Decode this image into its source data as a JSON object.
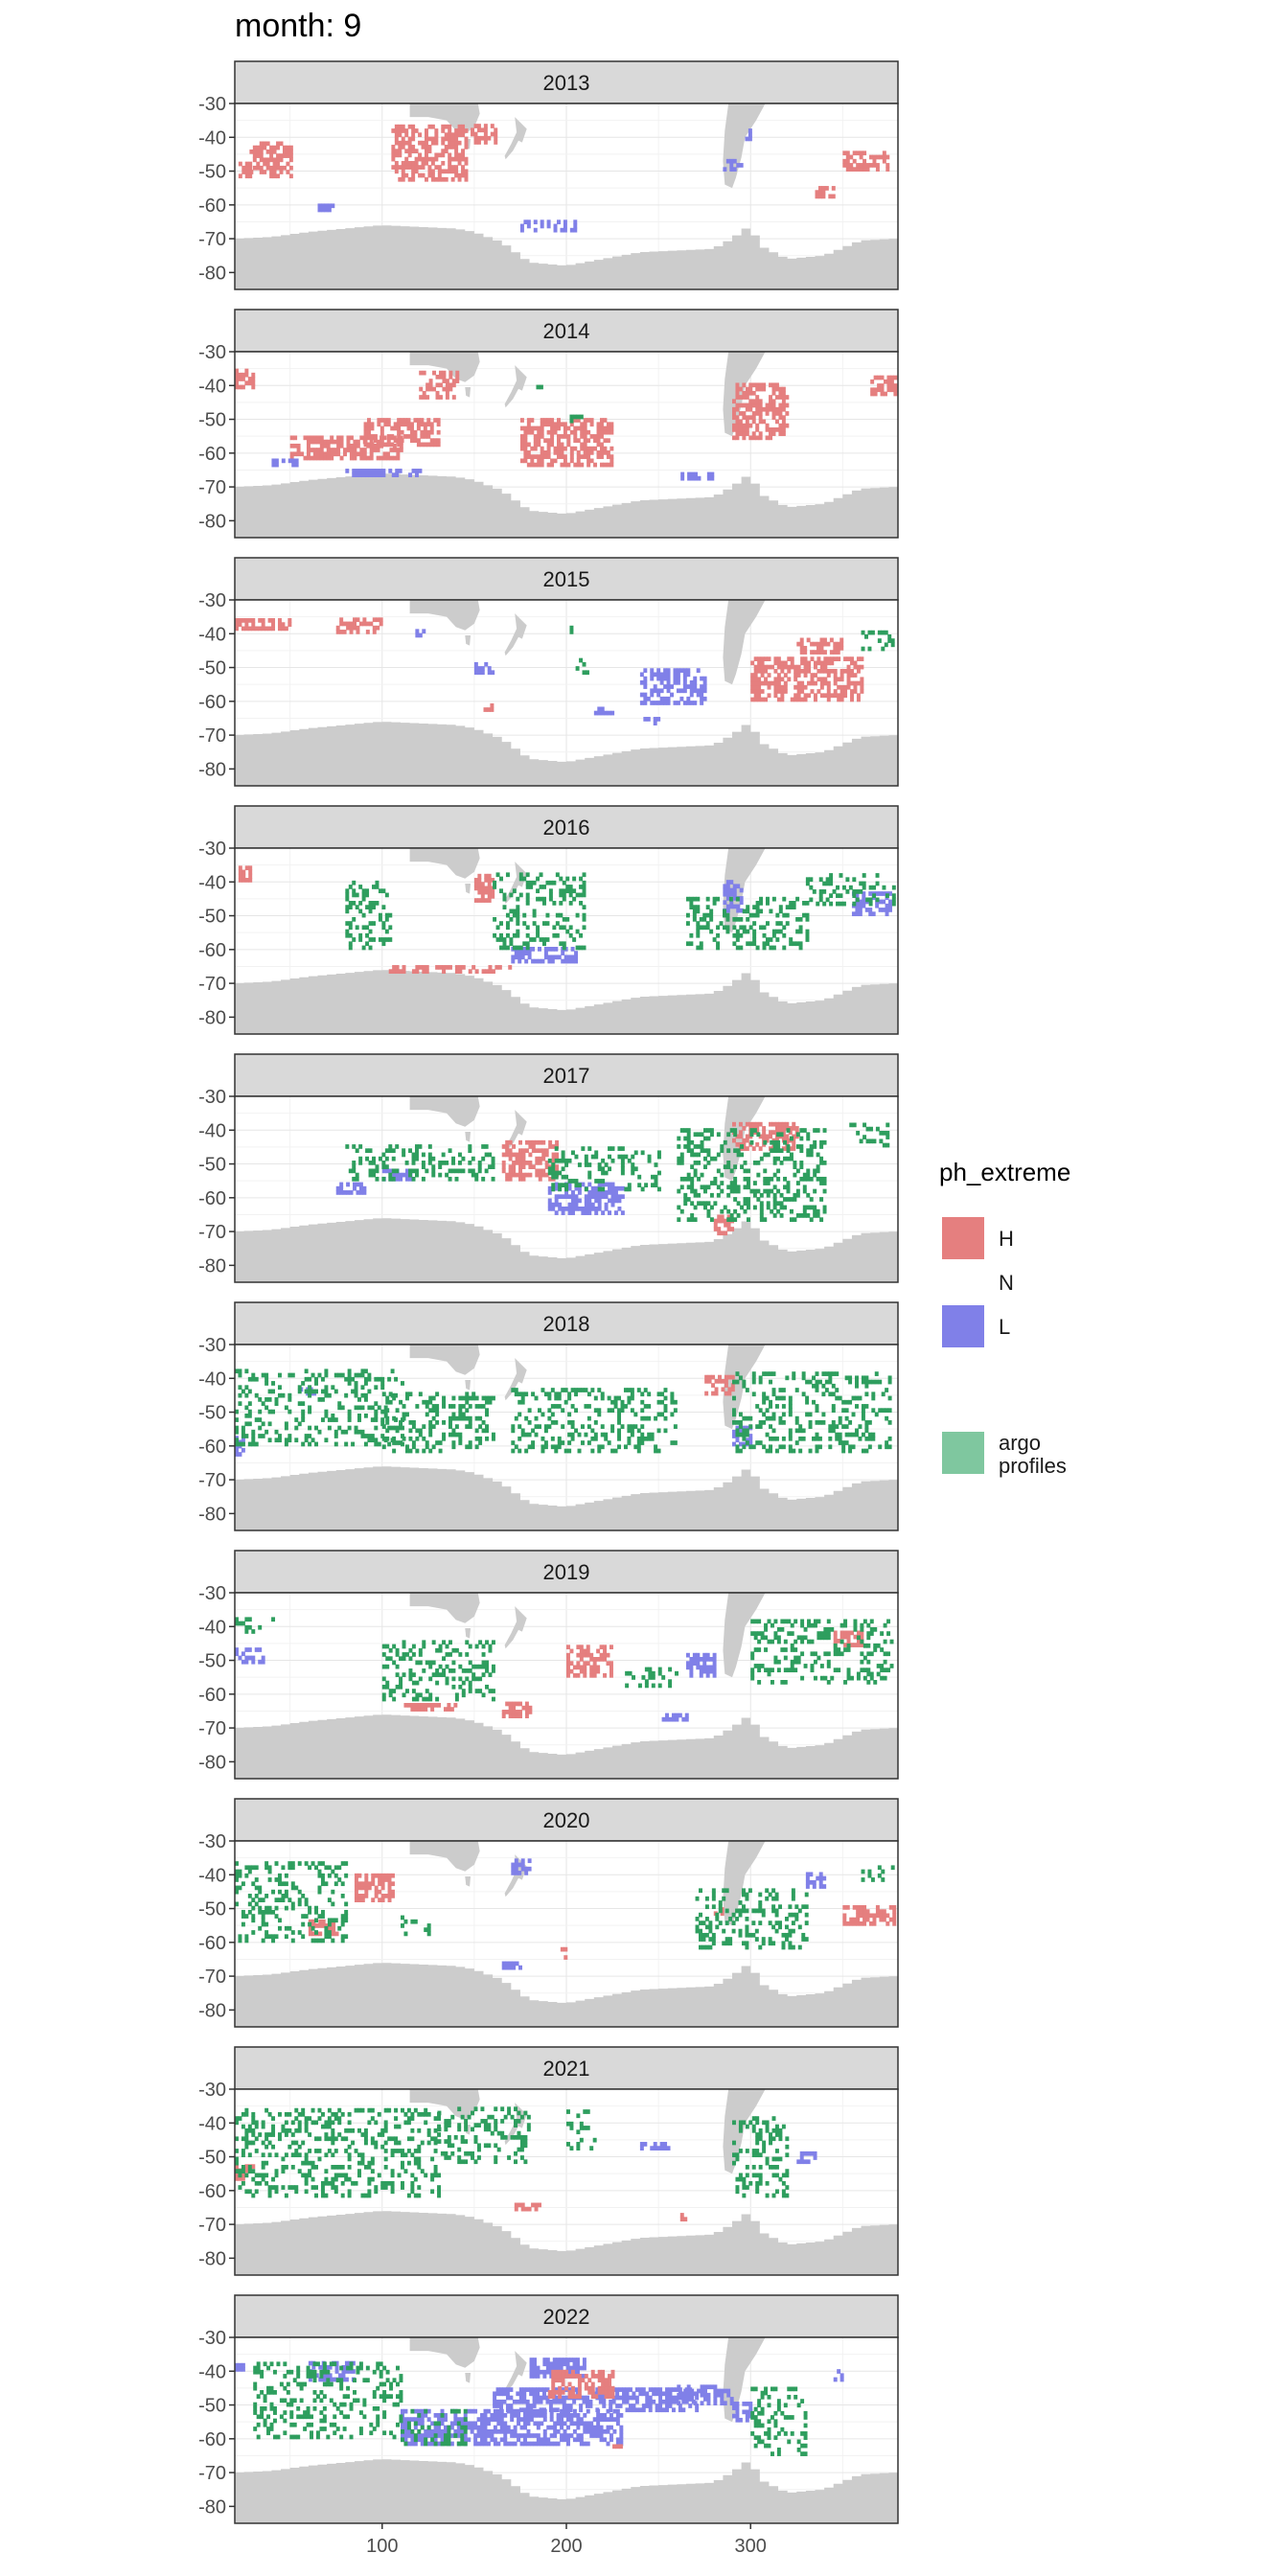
{
  "title": "month: 9",
  "chart_data": {
    "type": "heatmap",
    "facet_by": "year",
    "panels": [
      "2013",
      "2014",
      "2015",
      "2016",
      "2017",
      "2018",
      "2019",
      "2020",
      "2021",
      "2022"
    ],
    "xlim": [
      20,
      380
    ],
    "ylim": [
      -85,
      -30
    ],
    "x_ticks": [
      100,
      200,
      300
    ],
    "y_ticks": [
      -30,
      -40,
      -50,
      -60,
      -70,
      -80
    ],
    "grid": true,
    "legend": {
      "title": "ph_extreme",
      "placement": "right",
      "entries": [
        {
          "label": "H",
          "color": "#e57f7f"
        },
        {
          "label": "N",
          "color": null
        },
        {
          "label": "L",
          "color": "#8080e8"
        },
        {
          "label": "argo\nprofiles",
          "color": "#7fc79f"
        }
      ]
    },
    "colors": {
      "H": "#e57f7f",
      "L": "#8080e8",
      "argo": "#2e9e5e",
      "land": "#cccccc",
      "strip": "#d9d9d9"
    },
    "regions": {
      "2013": [
        {
          "cat": "H",
          "x": [
            28,
            50
          ],
          "y": [
            -52,
            -42
          ]
        },
        {
          "cat": "H",
          "x": [
            105,
            145
          ],
          "y": [
            -53,
            -37
          ]
        },
        {
          "cat": "H",
          "x": [
            148,
            162
          ],
          "y": [
            -42,
            -36
          ]
        },
        {
          "cat": "H",
          "x": [
            22,
            28
          ],
          "y": [
            -52,
            -48
          ]
        },
        {
          "cat": "H",
          "x": [
            350,
            375
          ],
          "y": [
            -50,
            -45
          ]
        },
        {
          "cat": "H",
          "x": [
            335,
            345
          ],
          "y": [
            -58,
            -55
          ]
        },
        {
          "cat": "L",
          "x": [
            175,
            205
          ],
          "y": [
            -68,
            -65
          ]
        },
        {
          "cat": "L",
          "x": [
            65,
            75
          ],
          "y": [
            -62,
            -60
          ]
        },
        {
          "cat": "L",
          "x": [
            285,
            295
          ],
          "y": [
            -50,
            -47
          ]
        },
        {
          "cat": "L",
          "x": [
            297,
            300
          ],
          "y": [
            -41,
            -38
          ]
        }
      ],
      "2014": [
        {
          "cat": "H",
          "x": [
            50,
            110
          ],
          "y": [
            -62,
            -55
          ]
        },
        {
          "cat": "H",
          "x": [
            90,
            130
          ],
          "y": [
            -58,
            -50
          ]
        },
        {
          "cat": "H",
          "x": [
            175,
            225
          ],
          "y": [
            -64,
            -50
          ]
        },
        {
          "cat": "H",
          "x": [
            120,
            140
          ],
          "y": [
            -44,
            -36
          ]
        },
        {
          "cat": "H",
          "x": [
            290,
            320
          ],
          "y": [
            -56,
            -40
          ]
        },
        {
          "cat": "H",
          "x": [
            20,
            30
          ],
          "y": [
            -41,
            -35
          ]
        },
        {
          "cat": "H",
          "x": [
            365,
            378
          ],
          "y": [
            -43,
            -37
          ]
        },
        {
          "cat": "L",
          "x": [
            80,
            120
          ],
          "y": [
            -67,
            -65
          ]
        },
        {
          "cat": "L",
          "x": [
            40,
            55
          ],
          "y": [
            -64,
            -62
          ]
        },
        {
          "cat": "L",
          "x": [
            262,
            280
          ],
          "y": [
            -68,
            -66
          ]
        },
        {
          "cat": "argo",
          "x": [
            200,
            210
          ],
          "y": [
            -51,
            -47
          ]
        },
        {
          "cat": "argo",
          "x": [
            180,
            190
          ],
          "y": [
            -41,
            -40
          ]
        }
      ],
      "2015": [
        {
          "cat": "H",
          "x": [
            20,
            50
          ],
          "y": [
            -39,
            -36
          ]
        },
        {
          "cat": "H",
          "x": [
            75,
            100
          ],
          "y": [
            -40,
            -36
          ]
        },
        {
          "cat": "H",
          "x": [
            300,
            360
          ],
          "y": [
            -60,
            -47
          ]
        },
        {
          "cat": "H",
          "x": [
            325,
            350
          ],
          "y": [
            -46,
            -42
          ]
        },
        {
          "cat": "H",
          "x": [
            155,
            160
          ],
          "y": [
            -63,
            -61
          ]
        },
        {
          "cat": "L",
          "x": [
            240,
            275
          ],
          "y": [
            -61,
            -51
          ]
        },
        {
          "cat": "L",
          "x": [
            150,
            160
          ],
          "y": [
            -52,
            -49
          ]
        },
        {
          "cat": "L",
          "x": [
            215,
            225
          ],
          "y": [
            -64,
            -62
          ]
        },
        {
          "cat": "L",
          "x": [
            240,
            250
          ],
          "y": [
            -67,
            -65
          ]
        },
        {
          "cat": "L",
          "x": [
            118,
            122
          ],
          "y": [
            -41,
            -38
          ]
        },
        {
          "cat": "argo",
          "x": [
            360,
            378
          ],
          "y": [
            -45,
            -40
          ]
        },
        {
          "cat": "argo",
          "x": [
            200,
            205
          ],
          "y": [
            -40,
            -38
          ]
        },
        {
          "cat": "argo",
          "x": [
            205,
            212
          ],
          "y": [
            -52,
            -48
          ]
        }
      ],
      "2016": [
        {
          "cat": "H",
          "x": [
            100,
            170
          ],
          "y": [
            -67,
            -65
          ]
        },
        {
          "cat": "H",
          "x": [
            150,
            160
          ],
          "y": [
            -46,
            -38
          ]
        },
        {
          "cat": "H",
          "x": [
            22,
            28
          ],
          "y": [
            -40,
            -36
          ]
        },
        {
          "cat": "L",
          "x": [
            170,
            205
          ],
          "y": [
            -64,
            -60
          ]
        },
        {
          "cat": "L",
          "x": [
            285,
            295
          ],
          "y": [
            -49,
            -40
          ]
        },
        {
          "cat": "L",
          "x": [
            355,
            375
          ],
          "y": [
            -50,
            -43
          ]
        },
        {
          "cat": "argo",
          "x": [
            80,
            105
          ],
          "y": [
            -60,
            -40
          ]
        },
        {
          "cat": "argo",
          "x": [
            160,
            210
          ],
          "y": [
            -60,
            -38
          ]
        },
        {
          "cat": "argo",
          "x": [
            265,
            330
          ],
          "y": [
            -60,
            -45
          ]
        },
        {
          "cat": "argo",
          "x": [
            330,
            378
          ],
          "y": [
            -47,
            -38
          ]
        }
      ],
      "2017": [
        {
          "cat": "H",
          "x": [
            165,
            195
          ],
          "y": [
            -55,
            -43
          ]
        },
        {
          "cat": "H",
          "x": [
            290,
            325
          ],
          "y": [
            -46,
            -38
          ]
        },
        {
          "cat": "H",
          "x": [
            280,
            290
          ],
          "y": [
            -71,
            -66
          ]
        },
        {
          "cat": "L",
          "x": [
            190,
            230
          ],
          "y": [
            -65,
            -56
          ]
        },
        {
          "cat": "L",
          "x": [
            75,
            90
          ],
          "y": [
            -59,
            -56
          ]
        },
        {
          "cat": "L",
          "x": [
            100,
            115
          ],
          "y": [
            -55,
            -52
          ]
        },
        {
          "cat": "argo",
          "x": [
            80,
            160
          ],
          "y": [
            -55,
            -45
          ]
        },
        {
          "cat": "argo",
          "x": [
            190,
            250
          ],
          "y": [
            -58,
            -45
          ]
        },
        {
          "cat": "argo",
          "x": [
            260,
            340
          ],
          "y": [
            -67,
            -40
          ]
        },
        {
          "cat": "argo",
          "x": [
            350,
            375
          ],
          "y": [
            -45,
            -38
          ]
        }
      ],
      "2018": [
        {
          "cat": "L",
          "x": [
            290,
            300
          ],
          "y": [
            -60,
            -55
          ]
        },
        {
          "cat": "L",
          "x": [
            55,
            65
          ],
          "y": [
            -45,
            -43
          ]
        },
        {
          "cat": "L",
          "x": [
            20,
            25
          ],
          "y": [
            -63,
            -58
          ]
        },
        {
          "cat": "H",
          "x": [
            275,
            290
          ],
          "y": [
            -45,
            -40
          ]
        },
        {
          "cat": "argo",
          "x": [
            20,
            110
          ],
          "y": [
            -60,
            -38
          ]
        },
        {
          "cat": "argo",
          "x": [
            100,
            160
          ],
          "y": [
            -62,
            -45
          ]
        },
        {
          "cat": "argo",
          "x": [
            170,
            260
          ],
          "y": [
            -62,
            -43
          ]
        },
        {
          "cat": "argo",
          "x": [
            290,
            375
          ],
          "y": [
            -62,
            -38
          ]
        }
      ],
      "2019": [
        {
          "cat": "L",
          "x": [
            20,
            35
          ],
          "y": [
            -51,
            -47
          ]
        },
        {
          "cat": "L",
          "x": [
            265,
            280
          ],
          "y": [
            -55,
            -48
          ]
        },
        {
          "cat": "L",
          "x": [
            250,
            265
          ],
          "y": [
            -68,
            -66
          ]
        },
        {
          "cat": "H",
          "x": [
            200,
            225
          ],
          "y": [
            -55,
            -46
          ]
        },
        {
          "cat": "H",
          "x": [
            110,
            140
          ],
          "y": [
            -65,
            -63
          ]
        },
        {
          "cat": "H",
          "x": [
            165,
            180
          ],
          "y": [
            -67,
            -63
          ]
        },
        {
          "cat": "H",
          "x": [
            345,
            360
          ],
          "y": [
            -46,
            -42
          ]
        },
        {
          "cat": "argo",
          "x": [
            20,
            45
          ],
          "y": [
            -42,
            -38
          ]
        },
        {
          "cat": "argo",
          "x": [
            100,
            160
          ],
          "y": [
            -62,
            -45
          ]
        },
        {
          "cat": "argo",
          "x": [
            230,
            260
          ],
          "y": [
            -58,
            -52
          ]
        },
        {
          "cat": "argo",
          "x": [
            300,
            378
          ],
          "y": [
            -57,
            -38
          ]
        }
      ],
      "2020": [
        {
          "cat": "H",
          "x": [
            85,
            105
          ],
          "y": [
            -48,
            -40
          ]
        },
        {
          "cat": "H",
          "x": [
            350,
            378
          ],
          "y": [
            -55,
            -50
          ]
        },
        {
          "cat": "H",
          "x": [
            60,
            75
          ],
          "y": [
            -58,
            -54
          ]
        },
        {
          "cat": "H",
          "x": [
            195,
            200
          ],
          "y": [
            -65,
            -62
          ]
        },
        {
          "cat": "H",
          "x": [
            280,
            285
          ],
          "y": [
            -52,
            -50
          ]
        },
        {
          "cat": "L",
          "x": [
            170,
            180
          ],
          "y": [
            -40,
            -36
          ]
        },
        {
          "cat": "L",
          "x": [
            330,
            340
          ],
          "y": [
            -44,
            -40
          ]
        },
        {
          "cat": "L",
          "x": [
            165,
            175
          ],
          "y": [
            -68,
            -66
          ]
        },
        {
          "cat": "argo",
          "x": [
            20,
            80
          ],
          "y": [
            -60,
            -36
          ]
        },
        {
          "cat": "argo",
          "x": [
            110,
            125
          ],
          "y": [
            -58,
            -52
          ]
        },
        {
          "cat": "argo",
          "x": [
            270,
            330
          ],
          "y": [
            -62,
            -45
          ]
        },
        {
          "cat": "argo",
          "x": [
            360,
            378
          ],
          "y": [
            -42,
            -38
          ]
        }
      ],
      "2021": [
        {
          "cat": "H",
          "x": [
            170,
            185
          ],
          "y": [
            -66,
            -64
          ]
        },
        {
          "cat": "H",
          "x": [
            260,
            265
          ],
          "y": [
            -69,
            -67
          ]
        },
        {
          "cat": "H",
          "x": [
            20,
            30
          ],
          "y": [
            -57,
            -53
          ]
        },
        {
          "cat": "L",
          "x": [
            240,
            255
          ],
          "y": [
            -48,
            -46
          ]
        },
        {
          "cat": "L",
          "x": [
            325,
            335
          ],
          "y": [
            -52,
            -49
          ]
        },
        {
          "cat": "argo",
          "x": [
            20,
            130
          ],
          "y": [
            -62,
            -36
          ]
        },
        {
          "cat": "argo",
          "x": [
            130,
            180
          ],
          "y": [
            -52,
            -36
          ]
        },
        {
          "cat": "argo",
          "x": [
            200,
            215
          ],
          "y": [
            -48,
            -36
          ]
        },
        {
          "cat": "argo",
          "x": [
            290,
            320
          ],
          "y": [
            -62,
            -38
          ]
        }
      ],
      "2022": [
        {
          "cat": "L",
          "x": [
            110,
            230
          ],
          "y": [
            -62,
            -52
          ]
        },
        {
          "cat": "L",
          "x": [
            160,
            270
          ],
          "y": [
            -52,
            -45
          ]
        },
        {
          "cat": "L",
          "x": [
            260,
            290
          ],
          "y": [
            -50,
            -45
          ]
        },
        {
          "cat": "L",
          "x": [
            60,
            85
          ],
          "y": [
            -43,
            -37
          ]
        },
        {
          "cat": "L",
          "x": [
            180,
            210
          ],
          "y": [
            -42,
            -37
          ]
        },
        {
          "cat": "L",
          "x": [
            290,
            300
          ],
          "y": [
            -55,
            -50
          ]
        },
        {
          "cat": "L",
          "x": [
            20,
            25
          ],
          "y": [
            -40,
            -38
          ]
        },
        {
          "cat": "L",
          "x": [
            345,
            350
          ],
          "y": [
            -43,
            -40
          ]
        },
        {
          "cat": "H",
          "x": [
            190,
            225
          ],
          "y": [
            -48,
            -40
          ]
        },
        {
          "cat": "H",
          "x": [
            225,
            230
          ],
          "y": [
            -64,
            -62
          ]
        },
        {
          "cat": "argo",
          "x": [
            30,
            110
          ],
          "y": [
            -60,
            -38
          ]
        },
        {
          "cat": "argo",
          "x": [
            110,
            145
          ],
          "y": [
            -62,
            -52
          ]
        },
        {
          "cat": "argo",
          "x": [
            300,
            330
          ],
          "y": [
            -65,
            -45
          ]
        }
      ]
    }
  }
}
